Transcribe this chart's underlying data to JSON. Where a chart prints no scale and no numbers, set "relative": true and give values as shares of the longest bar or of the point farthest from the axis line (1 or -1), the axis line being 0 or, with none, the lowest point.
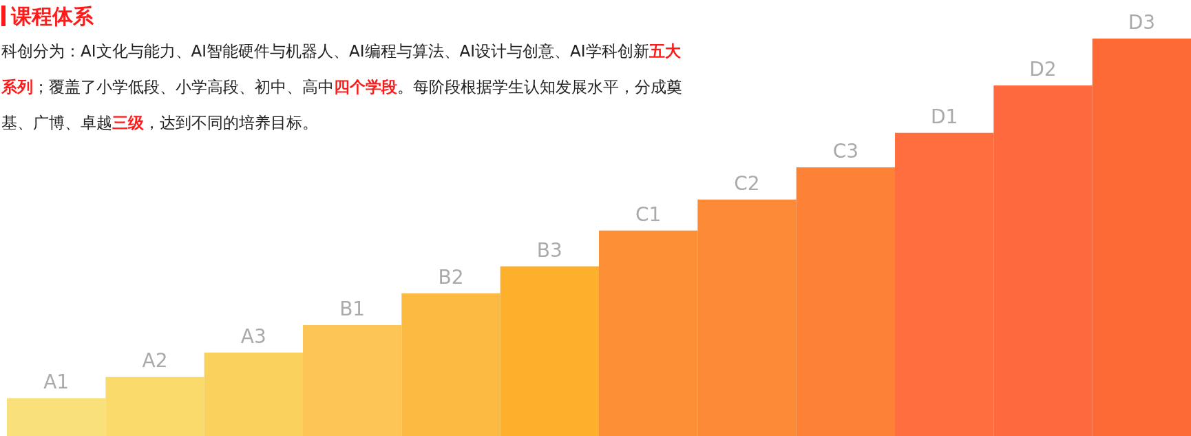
{
  "chart_data": {
    "type": "bar",
    "title": "课程体系",
    "annotations": [
      "科创分为：AI文化与能力、AI智能硬件与机器人、AI编程与算法、AI设计与创意、AI学科创新",
      "五大系列",
      "；覆盖了小学低段、小学高段、初中、高中",
      "四个学段",
      "。每阶段根据学生认知发展水平，分成奠基、广博、卓越",
      "三级",
      "，达到不同的培养目标。"
    ],
    "categories": [
      "A1",
      "A2",
      "A3",
      "B1",
      "B2",
      "B3",
      "C1",
      "C2",
      "C3",
      "D1",
      "D2",
      "D3"
    ],
    "values": [
      0.095,
      0.149,
      0.21,
      0.279,
      0.359,
      0.427,
      0.517,
      0.595,
      0.676,
      0.763,
      0.882,
      1
    ],
    "colors": [
      "#f9e07a",
      "#f9da6a",
      "#f9d15c",
      "#fdc456",
      "#fdba42",
      "#fdb02c",
      "#fd8f36",
      "#fd8a36",
      "#fd8236",
      "#fe6e3e",
      "#fe6a3e",
      "#fe6a36"
    ],
    "relative": true
  }
}
